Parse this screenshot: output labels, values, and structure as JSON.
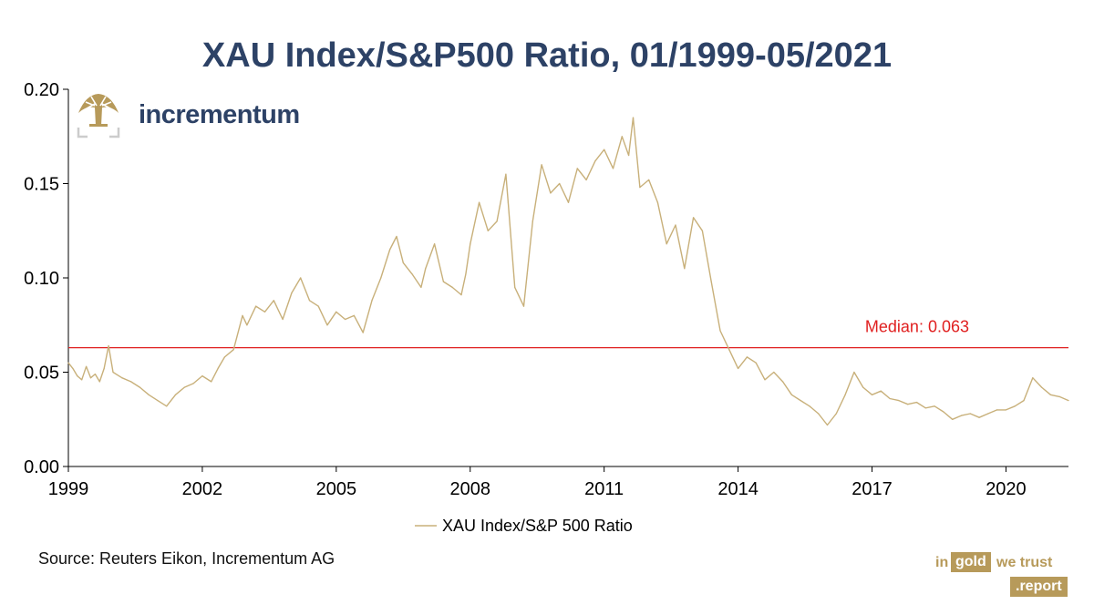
{
  "title": "XAU Index/S&P500 Ratio, 01/1999-05/2021",
  "logo": {
    "text": "incrementum"
  },
  "source": "Source: Reuters Eikon, Incrementum AG",
  "brand": {
    "w1": "in",
    "w2": "gold",
    "w3": "we trust",
    "w4": ".report"
  },
  "colors": {
    "line": "#c8b07a",
    "median": "#e02020",
    "title": "#2d4266"
  },
  "chart_data": {
    "type": "line",
    "title": "XAU Index/S&P500 Ratio, 01/1999-05/2021",
    "xlabel": "",
    "ylabel": "",
    "xlim": [
      1999.0,
      2021.4
    ],
    "ylim": [
      0.0,
      0.2
    ],
    "x_ticks": [
      1999,
      2002,
      2005,
      2008,
      2011,
      2014,
      2017,
      2020
    ],
    "y_ticks": [
      "0.00",
      "0.05",
      "0.10",
      "0.15",
      "0.20"
    ],
    "legend": {
      "position": "bottom",
      "entries": [
        "XAU Index/S&P 500 Ratio"
      ]
    },
    "annotations": [
      {
        "text": "Median: 0.063",
        "y": 0.063
      }
    ],
    "series": [
      {
        "name": "XAU Index/S&P 500 Ratio",
        "x": [
          1999.0,
          1999.1,
          1999.2,
          1999.3,
          1999.4,
          1999.5,
          1999.6,
          1999.7,
          1999.8,
          1999.9,
          2000.0,
          2000.2,
          2000.4,
          2000.6,
          2000.8,
          2001.0,
          2001.2,
          2001.4,
          2001.6,
          2001.8,
          2002.0,
          2002.2,
          2002.35,
          2002.5,
          2002.7,
          2002.9,
          2003.0,
          2003.2,
          2003.4,
          2003.6,
          2003.8,
          2004.0,
          2004.2,
          2004.4,
          2004.6,
          2004.8,
          2005.0,
          2005.2,
          2005.4,
          2005.6,
          2005.8,
          2006.0,
          2006.2,
          2006.35,
          2006.5,
          2006.7,
          2006.9,
          2007.0,
          2007.2,
          2007.4,
          2007.6,
          2007.8,
          2007.9,
          2008.0,
          2008.2,
          2008.4,
          2008.6,
          2008.8,
          2008.85,
          2009.0,
          2009.2,
          2009.4,
          2009.6,
          2009.8,
          2010.0,
          2010.2,
          2010.4,
          2010.6,
          2010.8,
          2011.0,
          2011.2,
          2011.4,
          2011.55,
          2011.65,
          2011.8,
          2012.0,
          2012.2,
          2012.4,
          2012.6,
          2012.8,
          2013.0,
          2013.2,
          2013.4,
          2013.6,
          2013.8,
          2014.0,
          2014.2,
          2014.4,
          2014.6,
          2014.8,
          2015.0,
          2015.2,
          2015.4,
          2015.6,
          2015.8,
          2016.0,
          2016.2,
          2016.4,
          2016.6,
          2016.8,
          2017.0,
          2017.2,
          2017.4,
          2017.6,
          2017.8,
          2018.0,
          2018.2,
          2018.4,
          2018.6,
          2018.8,
          2019.0,
          2019.2,
          2019.4,
          2019.6,
          2019.8,
          2020.0,
          2020.2,
          2020.4,
          2020.6,
          2020.8,
          2021.0,
          2021.2,
          2021.4
        ],
        "values": [
          0.055,
          0.052,
          0.048,
          0.046,
          0.053,
          0.047,
          0.049,
          0.045,
          0.052,
          0.064,
          0.05,
          0.047,
          0.045,
          0.042,
          0.038,
          0.035,
          0.032,
          0.038,
          0.042,
          0.044,
          0.048,
          0.045,
          0.052,
          0.058,
          0.062,
          0.08,
          0.075,
          0.085,
          0.082,
          0.088,
          0.078,
          0.092,
          0.1,
          0.088,
          0.085,
          0.075,
          0.082,
          0.078,
          0.08,
          0.071,
          0.088,
          0.1,
          0.115,
          0.122,
          0.108,
          0.102,
          0.095,
          0.105,
          0.118,
          0.098,
          0.095,
          0.091,
          0.102,
          0.118,
          0.14,
          0.125,
          0.13,
          0.155,
          0.14,
          0.095,
          0.085,
          0.13,
          0.16,
          0.145,
          0.15,
          0.14,
          0.158,
          0.152,
          0.162,
          0.168,
          0.158,
          0.175,
          0.165,
          0.185,
          0.148,
          0.152,
          0.14,
          0.118,
          0.128,
          0.105,
          0.132,
          0.125,
          0.098,
          0.072,
          0.062,
          0.052,
          0.058,
          0.055,
          0.046,
          0.05,
          0.045,
          0.038,
          0.035,
          0.032,
          0.028,
          0.022,
          0.028,
          0.038,
          0.05,
          0.042,
          0.038,
          0.04,
          0.036,
          0.035,
          0.033,
          0.034,
          0.031,
          0.032,
          0.029,
          0.025,
          0.027,
          0.028,
          0.026,
          0.028,
          0.03,
          0.03,
          0.032,
          0.035,
          0.047,
          0.042,
          0.038,
          0.037,
          0.035
        ]
      }
    ]
  }
}
